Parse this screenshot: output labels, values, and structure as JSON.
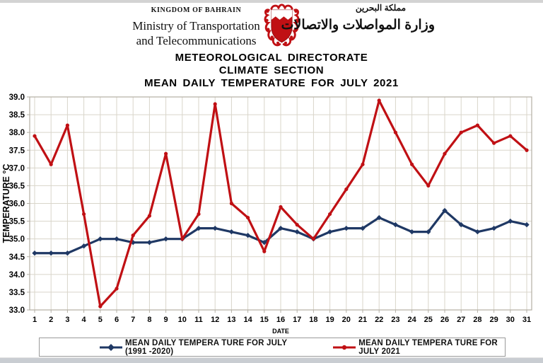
{
  "header": {
    "kingdom": "KINGDOM OF BAHRAIN",
    "ministry_line1": "Ministry of Transportation",
    "ministry_line2": "and Telecommunications",
    "arabic_kingdom": "مملكة البحرين",
    "arabic_ministry": "وزارة المواصلات والاتصالات",
    "directorate": "METEOROLOGICAL DIRECTORATE",
    "section": "CLIMATE SECTION",
    "chart_title": "MEAN DAILY TEMPERATURE FOR JULY 2021"
  },
  "chart_data": {
    "type": "line",
    "title": "MEAN DAILY TEMPERATURE FOR JULY 2021",
    "xlabel": "DATE",
    "ylabel": "TEMPERATURE °C",
    "ylim": [
      33.0,
      39.0
    ],
    "ytick_step": 0.5,
    "grid": true,
    "grid_color": "#d9d5ca",
    "axis_color": "#b3afa4",
    "legend_position": "bottom",
    "x": [
      1,
      2,
      3,
      4,
      5,
      6,
      7,
      8,
      9,
      10,
      11,
      12,
      13,
      14,
      15,
      16,
      17,
      18,
      19,
      20,
      21,
      22,
      23,
      24,
      25,
      26,
      27,
      28,
      29,
      30,
      31
    ],
    "series": [
      {
        "name": "MEAN DAILY TEMPERA TURE FOR JULY (1991 -2020)",
        "color": "#1F3864",
        "marker": "diamond",
        "values": [
          34.6,
          34.6,
          34.6,
          34.8,
          35.0,
          35.0,
          34.9,
          34.9,
          35.0,
          35.0,
          35.3,
          35.3,
          35.2,
          35.1,
          34.9,
          35.3,
          35.2,
          35.0,
          35.2,
          35.3,
          35.3,
          35.6,
          35.4,
          35.2,
          35.2,
          35.8,
          35.4,
          35.2,
          35.3,
          35.5,
          35.4
        ]
      },
      {
        "name": "MEAN DAILY TEMPERA TURE FOR JULY 2021",
        "color": "#C01014",
        "marker": "circle",
        "values": [
          37.9,
          37.1,
          38.2,
          35.7,
          33.1,
          33.6,
          35.1,
          35.65,
          37.4,
          35.0,
          35.7,
          38.8,
          36.0,
          35.6,
          34.65,
          35.9,
          35.4,
          35.0,
          35.7,
          36.4,
          37.1,
          38.9,
          38.0,
          37.1,
          36.5,
          37.4,
          38.0,
          38.2,
          37.7,
          37.9,
          37.5
        ]
      }
    ]
  }
}
